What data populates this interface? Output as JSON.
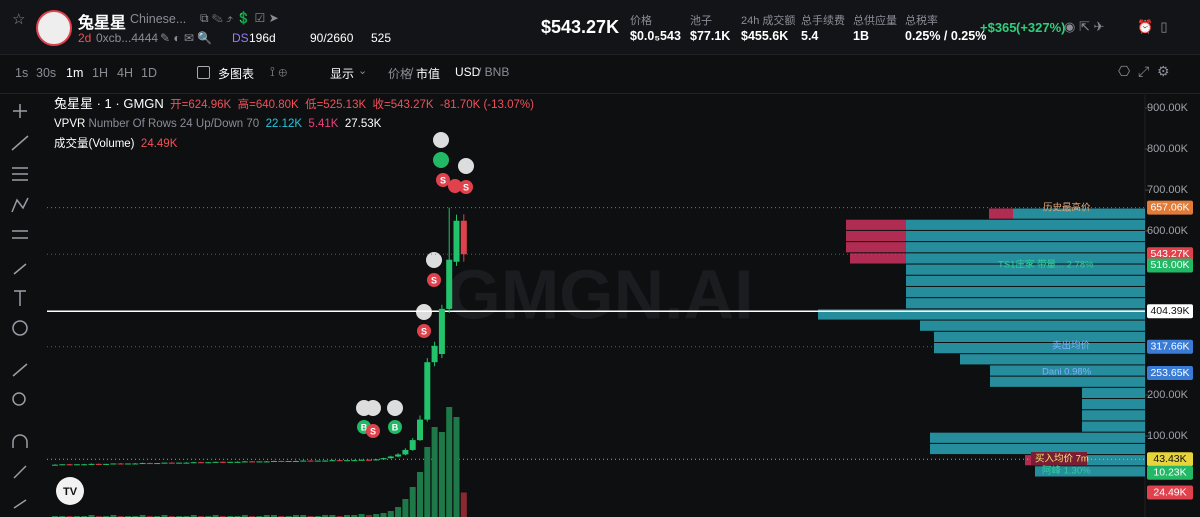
{
  "header": {
    "title": "兔星星",
    "subtitle": "Chinese...",
    "age": "2d",
    "address": "0xcb...4444",
    "ds": "DS",
    "ds_age": "196d",
    "holders": "90/2660",
    "views": "525",
    "market_cap": "$543.27K",
    "stats": [
      {
        "label": "价格",
        "value": "$0.0₅543"
      },
      {
        "label": "池子",
        "value": "$77.1K"
      },
      {
        "label": "24h 成交额",
        "value": "$455.6K"
      },
      {
        "label": "总手续费",
        "value": "5.4"
      },
      {
        "label": "总供应量",
        "value": "1B"
      },
      {
        "label": "总税率",
        "value": "0.25% / 0.25%"
      }
    ],
    "pnl": "+$365",
    "pnl_pct": "(+327%)"
  },
  "toolbar": {
    "timeframes": [
      "1s",
      "30s",
      "1m",
      "1H",
      "4H",
      "1D"
    ],
    "multi_chart": "多图表",
    "display": "显示",
    "price": "价格",
    "sep": "/",
    "mcap": "市值",
    "usd": "USD",
    "bnb": "/ BNB"
  },
  "legend": {
    "symbol": "兔星星 · 1 · GMGN",
    "open": "开=624.96K",
    "high": "高=640.80K",
    "low": "低=525.13K",
    "close": "收=543.27K",
    "change": "-81.70K (-13.07%)",
    "vpvr": "VPVR",
    "vpvr_params": "Number Of Rows 24 Up/Down 70",
    "vpvr_up": "22.12K",
    "vpvr_down": "5.41K",
    "vpvr_total": "27.53K",
    "volume": "成交量(Volume)",
    "volume_value": "24.49K"
  },
  "watermark": "GMGN.AI",
  "annotations": {
    "ath": "历史最高价",
    "ts1": "TS1庄家 带量... 2.78%",
    "sell_avg": "卖出均价",
    "dani": "Dani 0.98%",
    "buy_avg": "买入均价 7m",
    "afeng": "阿峰 1.30%"
  },
  "price_axis": {
    "ticks": [
      {
        "value": 900,
        "label": "900.00K"
      },
      {
        "value": 800,
        "label": "800.00K"
      },
      {
        "value": 700,
        "label": "700.00K"
      },
      {
        "value": 600,
        "label": "600.00K"
      },
      {
        "value": 200,
        "label": "200.00K"
      },
      {
        "value": 100,
        "label": "100.00K"
      }
    ],
    "tags": [
      {
        "value": 657.06,
        "label": "657.06K",
        "color": "#e07b39",
        "line": "dotted"
      },
      {
        "value": 543.27,
        "label": "543.27K",
        "color": "#e0424d",
        "line": "dotted"
      },
      {
        "value": 516,
        "label": "516.00K",
        "color": "#22b865",
        "line": "none"
      },
      {
        "value": 404.39,
        "label": "404.39K",
        "color": "#ffffff",
        "line": "solid"
      },
      {
        "value": 317.66,
        "label": "317.66K",
        "color": "#3a7bd5",
        "line": "dotted"
      },
      {
        "value": 253.65,
        "label": "253.65K",
        "color": "#3a7bd5",
        "line": "none"
      },
      {
        "value": 43.43,
        "label": "43.43K",
        "color": "#e8d43a",
        "line": "dotted"
      },
      {
        "value": 10.23,
        "label": "10.23K",
        "color": "#22b865",
        "line": "none"
      }
    ],
    "volume_tag": {
      "value": 24.49,
      "label": "24.49K",
      "color": "#e0424d"
    }
  },
  "candles": [
    [
      30,
      31,
      29,
      30
    ],
    [
      30,
      31,
      29,
      31
    ],
    [
      31,
      32,
      30,
      30
    ],
    [
      30,
      31,
      29,
      31
    ],
    [
      31,
      32,
      30,
      31
    ],
    [
      31,
      33,
      30,
      32
    ],
    [
      32,
      33,
      31,
      31
    ],
    [
      31,
      32,
      30,
      32
    ],
    [
      32,
      33,
      31,
      33
    ],
    [
      33,
      34,
      32,
      32
    ],
    [
      32,
      33,
      31,
      33
    ],
    [
      33,
      34,
      32,
      33
    ],
    [
      33,
      35,
      32,
      34
    ],
    [
      34,
      35,
      33,
      33
    ],
    [
      33,
      34,
      32,
      34
    ],
    [
      34,
      35,
      33,
      35
    ],
    [
      35,
      36,
      34,
      34
    ],
    [
      34,
      35,
      33,
      35
    ],
    [
      35,
      36,
      34,
      35
    ],
    [
      35,
      37,
      34,
      36
    ],
    [
      36,
      37,
      35,
      35
    ],
    [
      35,
      36,
      34,
      36
    ],
    [
      36,
      37,
      35,
      37
    ],
    [
      37,
      38,
      36,
      36
    ],
    [
      36,
      37,
      35,
      37
    ],
    [
      37,
      38,
      36,
      37
    ],
    [
      37,
      39,
      36,
      38
    ],
    [
      38,
      39,
      37,
      37
    ],
    [
      37,
      38,
      36,
      38
    ],
    [
      38,
      39,
      37,
      38
    ],
    [
      38,
      40,
      37,
      39
    ],
    [
      39,
      40,
      38,
      38
    ],
    [
      38,
      39,
      37,
      39
    ],
    [
      39,
      40,
      38,
      39
    ],
    [
      39,
      41,
      38,
      40
    ],
    [
      40,
      41,
      39,
      39
    ],
    [
      39,
      40,
      38,
      40
    ],
    [
      40,
      41,
      39,
      40
    ],
    [
      40,
      42,
      39,
      41
    ],
    [
      41,
      42,
      40,
      40
    ],
    [
      40,
      41,
      39,
      41
    ],
    [
      41,
      42,
      40,
      41
    ],
    [
      41,
      43,
      40,
      42
    ],
    [
      42,
      43,
      41,
      41
    ],
    [
      41,
      44,
      40,
      43
    ],
    [
      43,
      47,
      42,
      46
    ],
    [
      46,
      52,
      45,
      50
    ],
    [
      50,
      58,
      48,
      55
    ],
    [
      55,
      70,
      53,
      66
    ],
    [
      66,
      95,
      64,
      90
    ],
    [
      90,
      150,
      88,
      140
    ],
    [
      140,
      290,
      135,
      280
    ],
    [
      280,
      330,
      270,
      320
    ],
    [
      300,
      420,
      290,
      410
    ],
    [
      410,
      657.06,
      400,
      530
    ],
    [
      525,
      640,
      515,
      625
    ],
    [
      624.96,
      640.8,
      525.13,
      543.27
    ]
  ],
  "volumes": [
    1,
    1,
    1,
    1,
    1,
    2,
    1,
    1,
    2,
    1,
    1,
    1,
    2,
    1,
    1,
    2,
    1,
    1,
    1,
    2,
    1,
    1,
    2,
    1,
    1,
    1,
    2,
    1,
    1,
    2,
    2,
    1,
    1,
    2,
    2,
    1,
    1,
    2,
    2,
    1,
    2,
    2,
    3,
    2,
    3,
    4,
    6,
    10,
    18,
    30,
    45,
    70,
    90,
    85,
    110,
    100,
    24.49
  ],
  "vpvr": {
    "up": [
      132,
      239,
      239,
      239,
      239,
      239,
      239,
      239,
      239,
      327,
      225,
      211,
      211,
      185,
      155,
      155,
      63,
      63,
      63,
      63,
      215,
      215,
      110,
      110
    ],
    "down": [
      24,
      60,
      60,
      60,
      56,
      0,
      0,
      0,
      0,
      0,
      0,
      0,
      0,
      0,
      0,
      0,
      0,
      0,
      0,
      0,
      0,
      0,
      10,
      0
    ]
  }
}
